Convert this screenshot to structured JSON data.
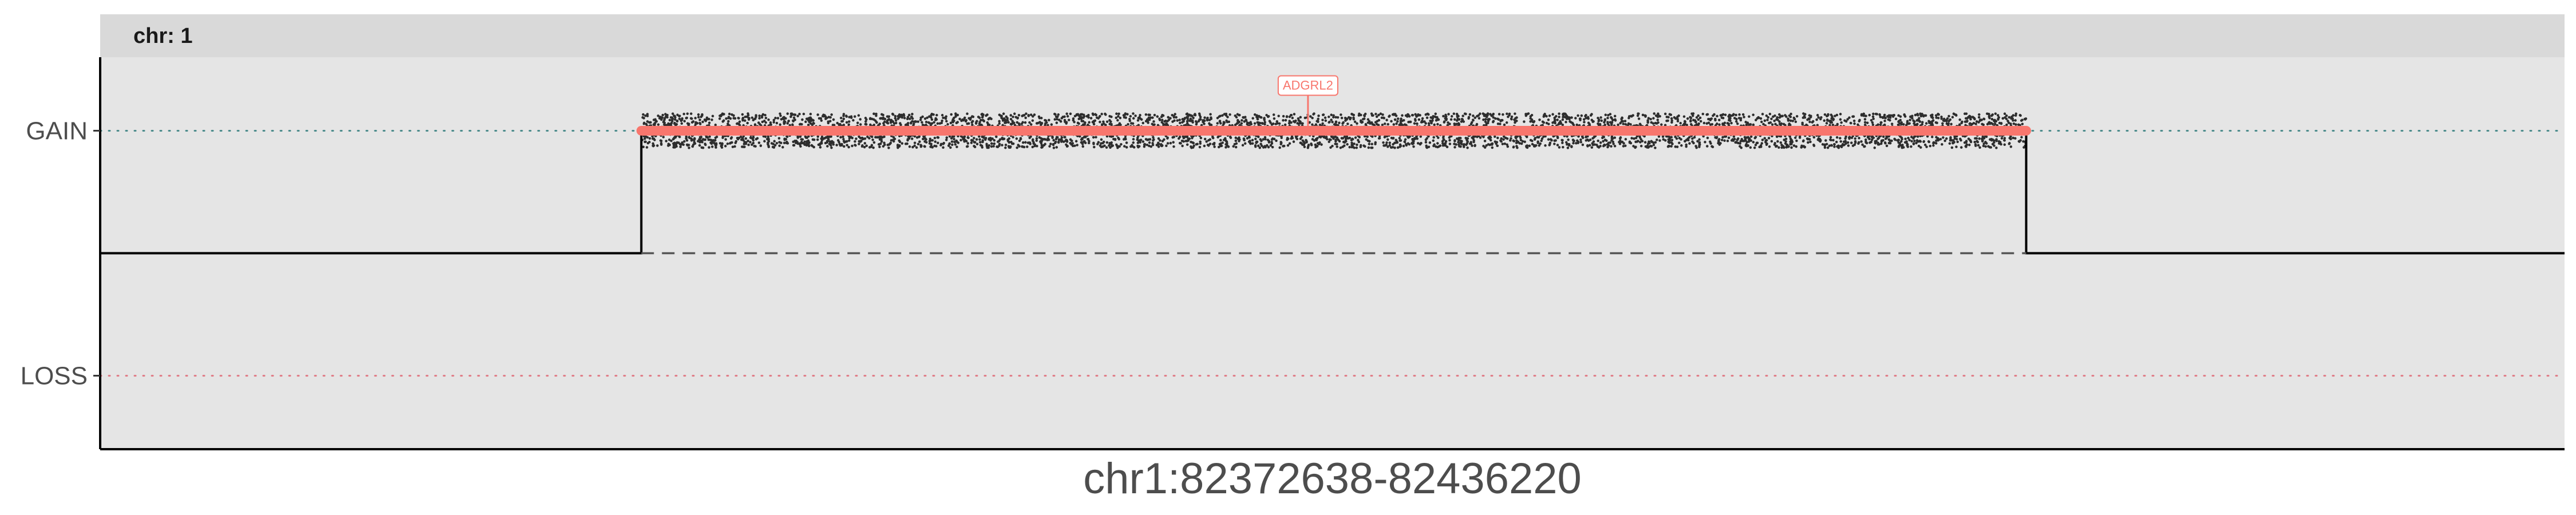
{
  "chart_data": {
    "type": "scatter",
    "title": "",
    "facet_label": "chr: 1",
    "xlabel": "chr1:82372638-82436220",
    "ylabel": "",
    "x_range": [
      82372638,
      82436220
    ],
    "y_categories": [
      "LOSS",
      "GAIN"
    ],
    "y_values": {
      "GAIN": 1,
      "NEUTRAL": 0,
      "LOSS": -1
    },
    "ylim": [
      -1.6,
      1.6
    ],
    "grid": false,
    "copy_number_profile": [
      {
        "x_start": 82372638,
        "x_end": 82386600,
        "state": "NEUTRAL"
      },
      {
        "x_start": 82386600,
        "x_end": 82422330,
        "state": "GAIN"
      },
      {
        "x_start": 82422330,
        "x_end": 82436220,
        "state": "NEUTRAL"
      }
    ],
    "segments": [
      {
        "x_start": 82386600,
        "x_end": 82422330,
        "state": "GAIN",
        "value": 1,
        "color": "#f8766d"
      }
    ],
    "gene_annotations": [
      {
        "label": "ADGRL2",
        "x": 82403800,
        "state": "GAIN"
      }
    ],
    "probe_scatter": {
      "x_start": 82386600,
      "x_end": 82422330,
      "center": 1,
      "spread": 0.14,
      "color": "#000000"
    },
    "colors": {
      "panel_bg": "#e5e5e5",
      "strip_bg": "#d9d9d9",
      "segment": "#f8766d",
      "gain_ref": "#4b8b8b",
      "loss_ref": "#e07a85",
      "profile": "#000000"
    }
  }
}
